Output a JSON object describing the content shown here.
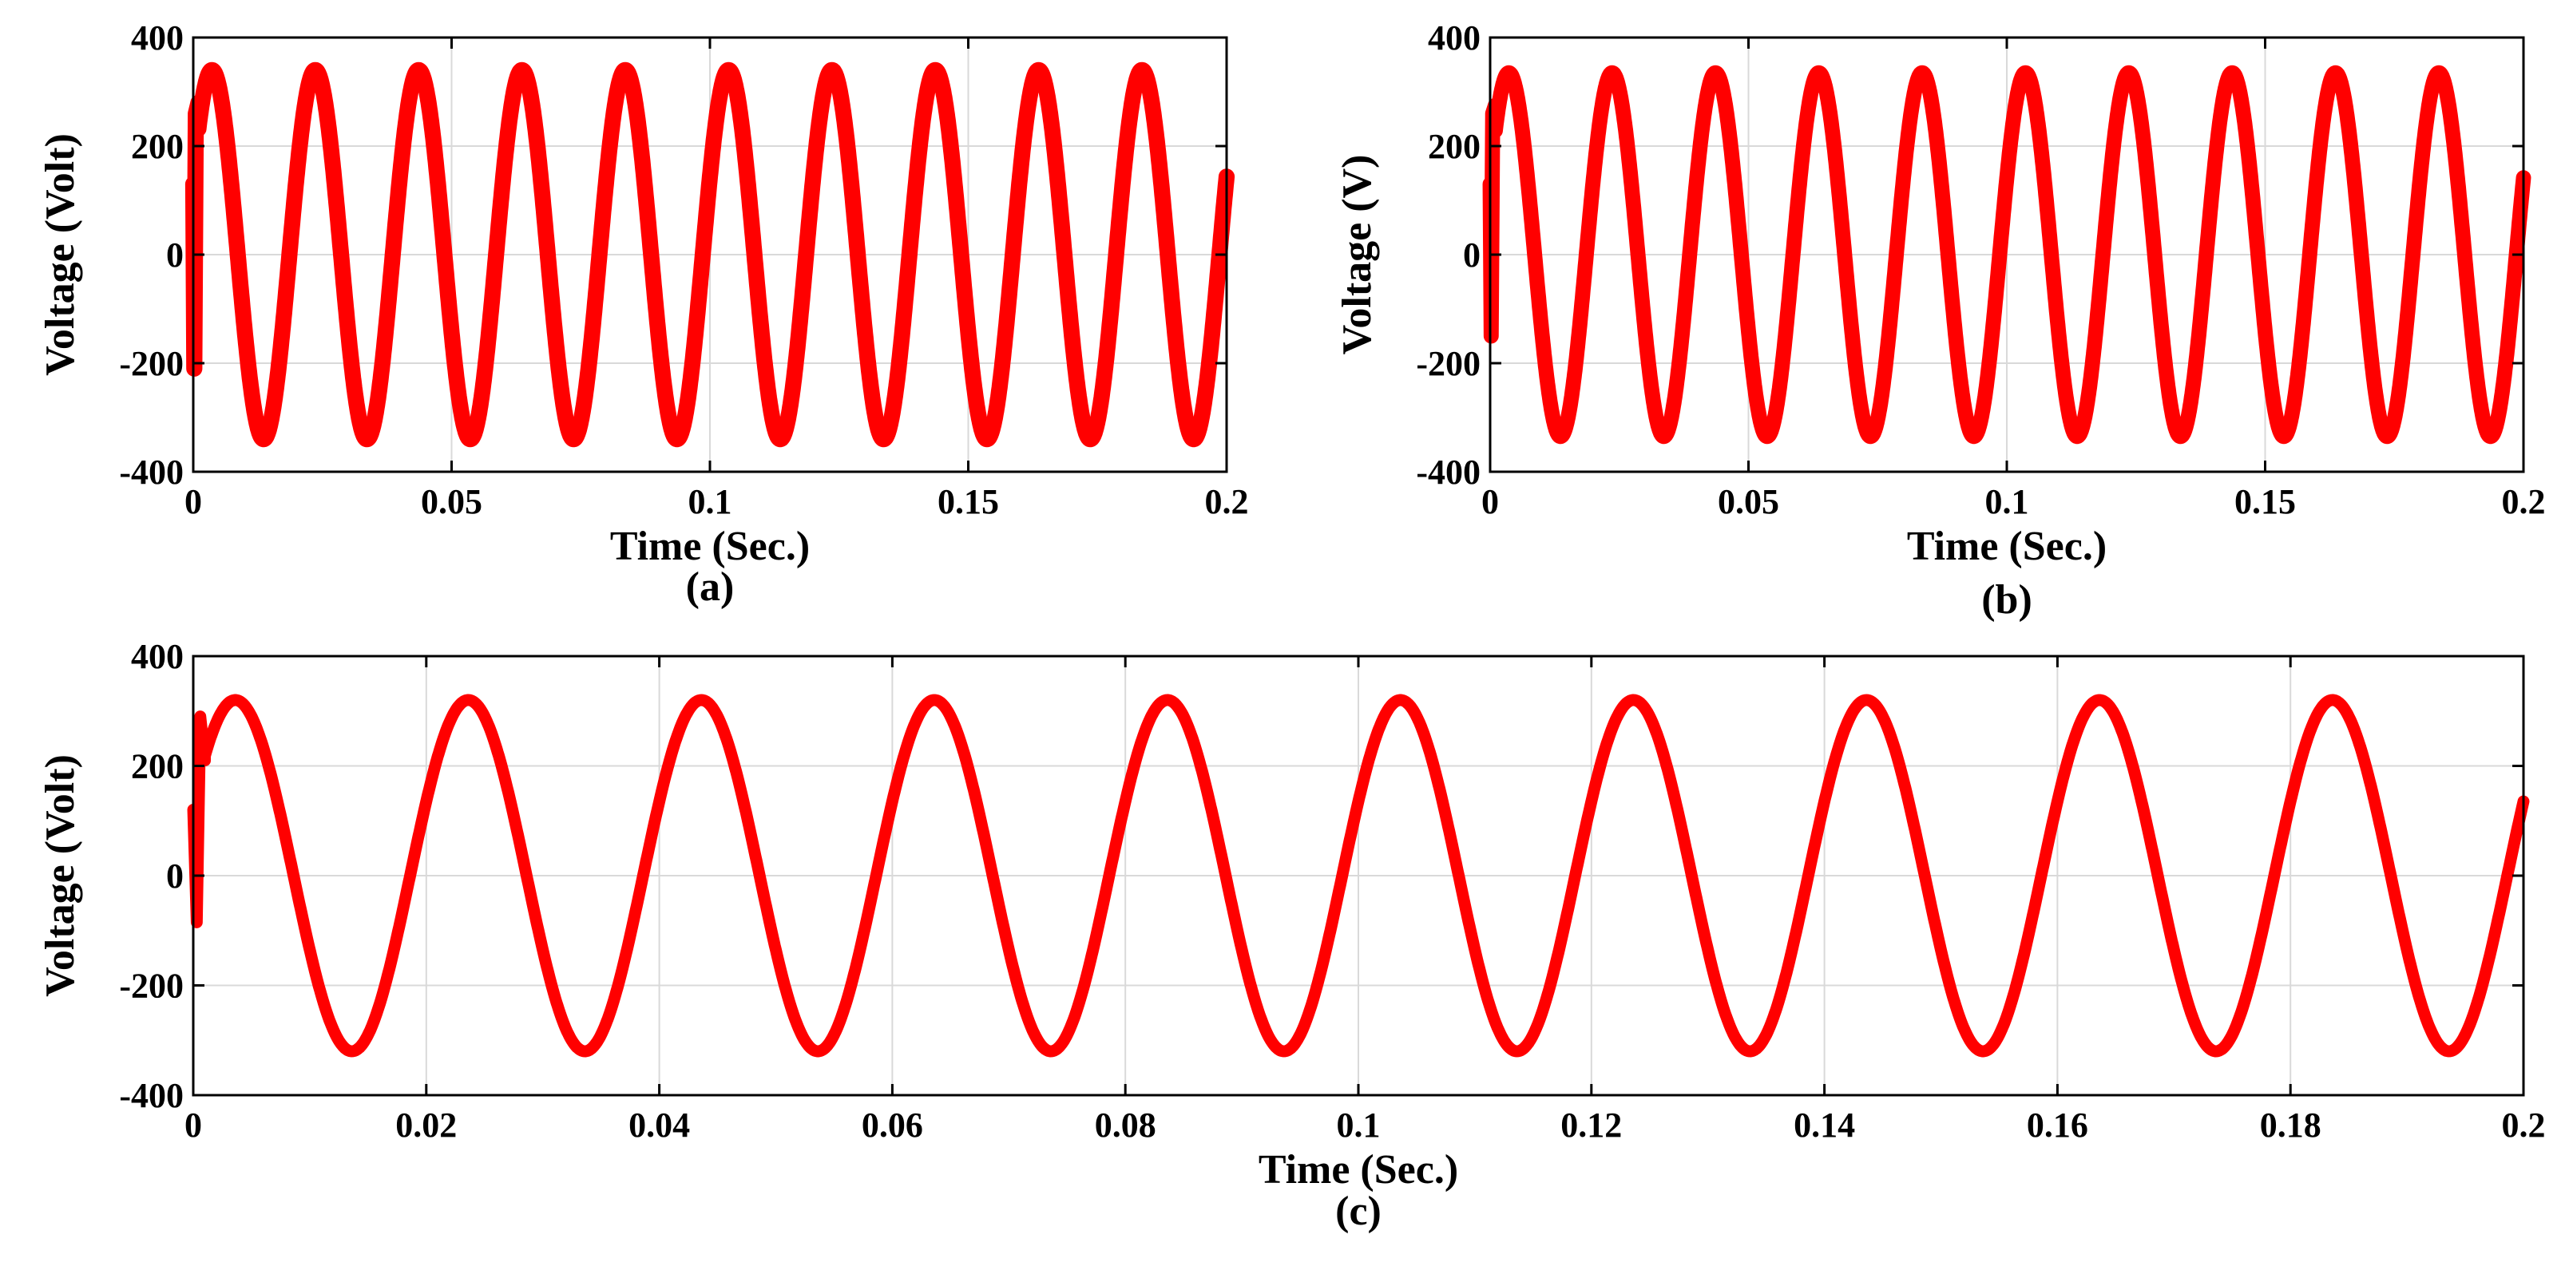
{
  "chart_data": [
    {
      "id": "a",
      "type": "line",
      "caption": "(a)",
      "xlabel": "Time (Sec.)",
      "ylabel": "Voltage (Volt)",
      "xlim": [
        0,
        0.2
      ],
      "ylim": [
        -400,
        400
      ],
      "xticks": [
        0,
        0.05,
        0.1,
        0.15,
        0.2
      ],
      "xtick_labels": [
        "0",
        "0.05",
        "0.1",
        "0.15",
        "0.2"
      ],
      "yticks": [
        -400,
        -200,
        0,
        200,
        400
      ],
      "ytick_labels": [
        "-400",
        "-200",
        "0",
        "200",
        "400"
      ],
      "grid": true,
      "series": [
        {
          "name": "voltage",
          "color": "#ff0000",
          "waveform": "sine",
          "amplitude": 340,
          "frequency_hz": 50,
          "phase_deg": 25,
          "ripple_band": 18,
          "t_start": 0,
          "t_end": 0.2,
          "startup_transient": [
            [
              0,
              130
            ],
            [
              0.0002,
              -210
            ],
            [
              0.0005,
              260
            ],
            [
              0.001,
              280
            ]
          ]
        }
      ]
    },
    {
      "id": "b",
      "type": "line",
      "caption": "(b)",
      "xlabel": "Time (Sec.)",
      "ylabel": "Voltage (V)",
      "xlim": [
        0,
        0.2
      ],
      "ylim": [
        -400,
        400
      ],
      "xticks": [
        0,
        0.05,
        0.1,
        0.15,
        0.2
      ],
      "xtick_labels": [
        "0",
        "0.05",
        "0.1",
        "0.15",
        "0.2"
      ],
      "yticks": [
        -400,
        -200,
        0,
        200,
        400
      ],
      "ytick_labels": [
        "-400",
        "-200",
        "0",
        "200",
        "400"
      ],
      "grid": true,
      "series": [
        {
          "name": "voltage",
          "color": "#ff0000",
          "waveform": "sine",
          "amplitude": 335,
          "frequency_hz": 50,
          "phase_deg": 25,
          "ripple_band": 16,
          "t_start": 0,
          "t_end": 0.2,
          "startup_transient": [
            [
              0,
              130
            ],
            [
              0.0002,
              -150
            ],
            [
              0.0005,
              260
            ],
            [
              0.001,
              275
            ]
          ]
        }
      ]
    },
    {
      "id": "c",
      "type": "line",
      "caption": "(c)",
      "xlabel": "Time (Sec.)",
      "ylabel": "Voltage (Volt)",
      "xlim": [
        0,
        0.2
      ],
      "ylim": [
        -400,
        400
      ],
      "xticks": [
        0,
        0.02,
        0.04,
        0.06,
        0.08,
        0.1,
        0.12,
        0.14,
        0.16,
        0.18,
        0.2
      ],
      "xtick_labels": [
        "0",
        "0.02",
        "0.04",
        "0.06",
        "0.08",
        "0.1",
        "0.12",
        "0.14",
        "0.16",
        "0.18",
        "0.2"
      ],
      "yticks": [
        -400,
        -200,
        0,
        200,
        400
      ],
      "ytick_labels": [
        "-400",
        "-200",
        "0",
        "200",
        "400"
      ],
      "grid": true,
      "series": [
        {
          "name": "voltage",
          "color": "#ff0000",
          "waveform": "sine",
          "amplitude": 320,
          "frequency_hz": 50,
          "phase_deg": 25,
          "ripple_band": 10,
          "t_start": 0,
          "t_end": 0.2,
          "startup_transient": [
            [
              0,
              120
            ],
            [
              0.0003,
              -85
            ],
            [
              0.0006,
              290
            ],
            [
              0.001,
              210
            ]
          ]
        }
      ]
    }
  ]
}
